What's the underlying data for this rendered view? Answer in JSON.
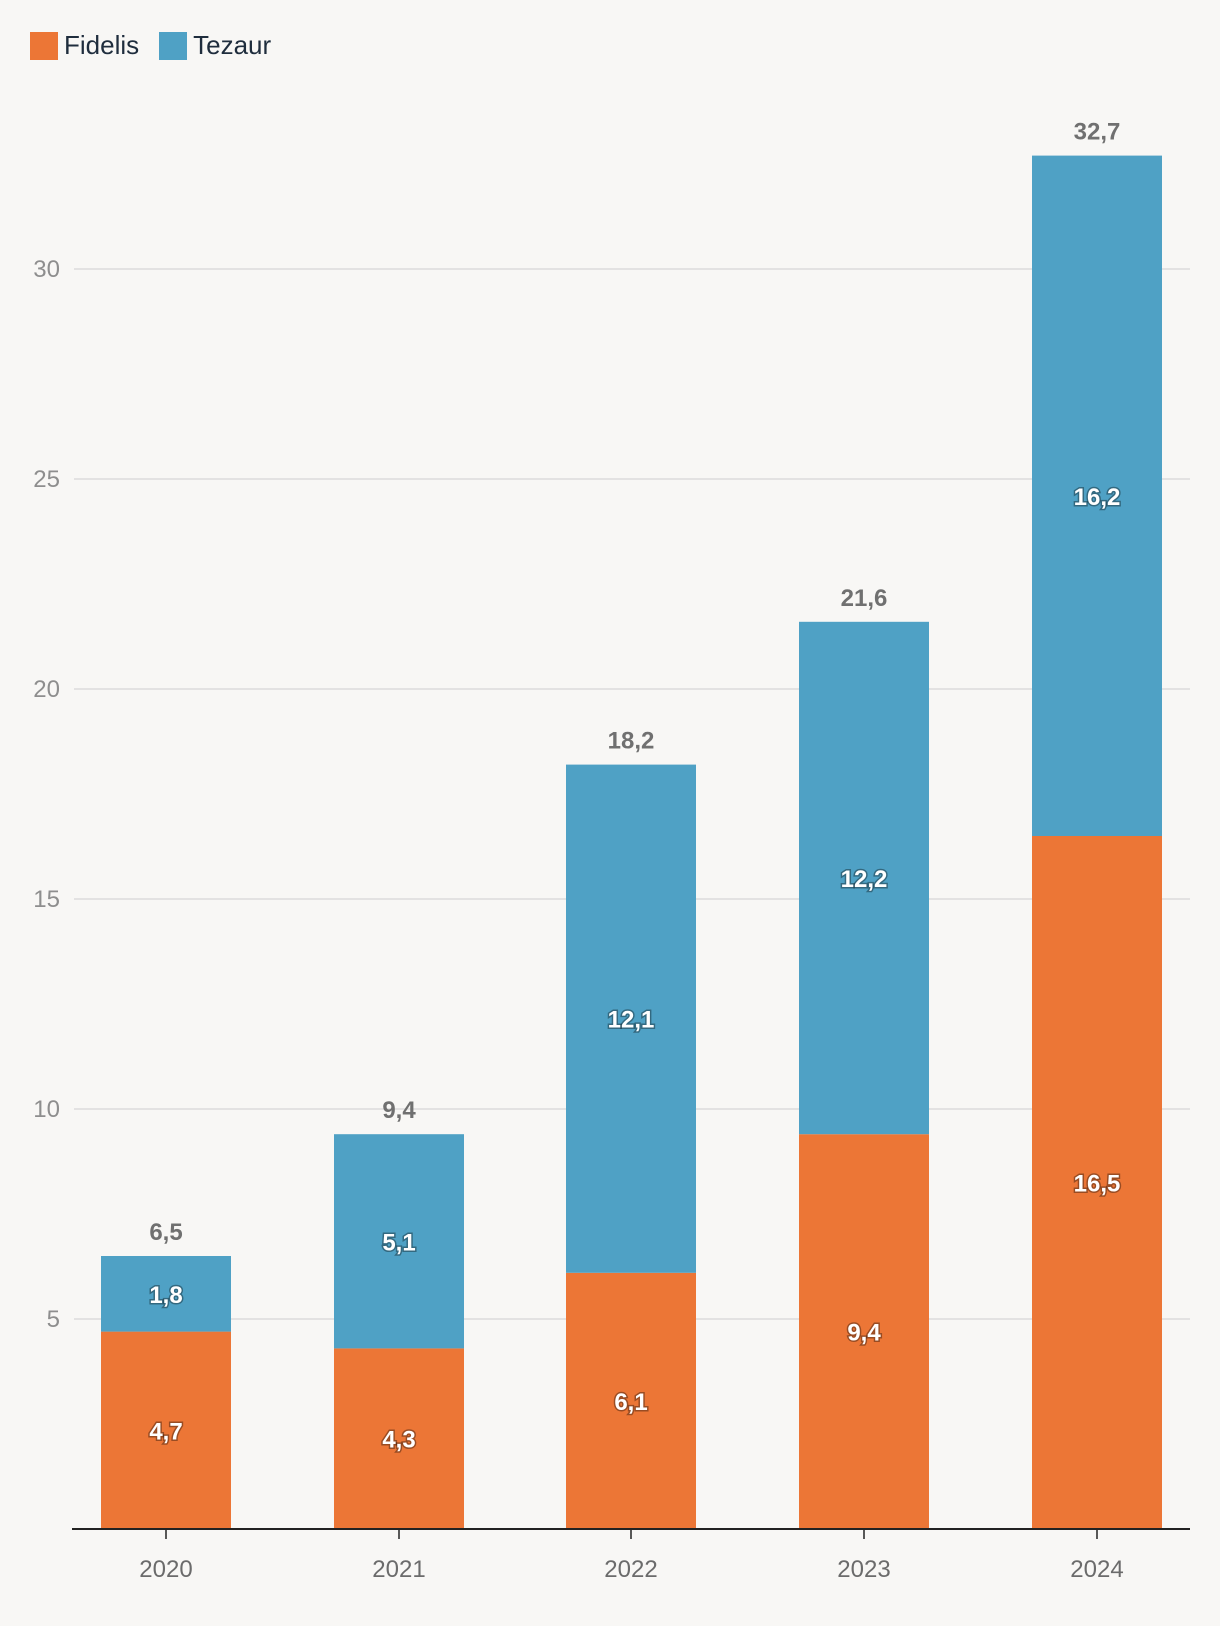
{
  "chart_data": {
    "type": "bar",
    "stacked": true,
    "categories": [
      "2020",
      "2021",
      "2022",
      "2023",
      "2024"
    ],
    "series": [
      {
        "name": "Fidelis",
        "color": "#ec7636",
        "values": [
          4.7,
          4.3,
          6.1,
          9.4,
          16.5
        ],
        "labels": [
          "4,7",
          "4,3",
          "6,1",
          "9,4",
          "16,5"
        ]
      },
      {
        "name": "Tezaur",
        "color": "#4fa1c5",
        "values": [
          1.8,
          5.1,
          12.1,
          12.2,
          16.2
        ],
        "labels": [
          "1,8",
          "5,1",
          "12,1",
          "12,2",
          "16,2"
        ]
      }
    ],
    "totals": [
      6.5,
      9.4,
      18.2,
      21.6,
      32.7
    ],
    "total_labels": [
      "6,5",
      "9,4",
      "18,2",
      "21,6",
      "32,7"
    ],
    "yticks": [
      5,
      10,
      15,
      20,
      25,
      30
    ],
    "ylim": [
      0,
      34
    ],
    "grid": true,
    "legend_position": "top-left",
    "title": "",
    "xlabel": "",
    "ylabel": ""
  }
}
